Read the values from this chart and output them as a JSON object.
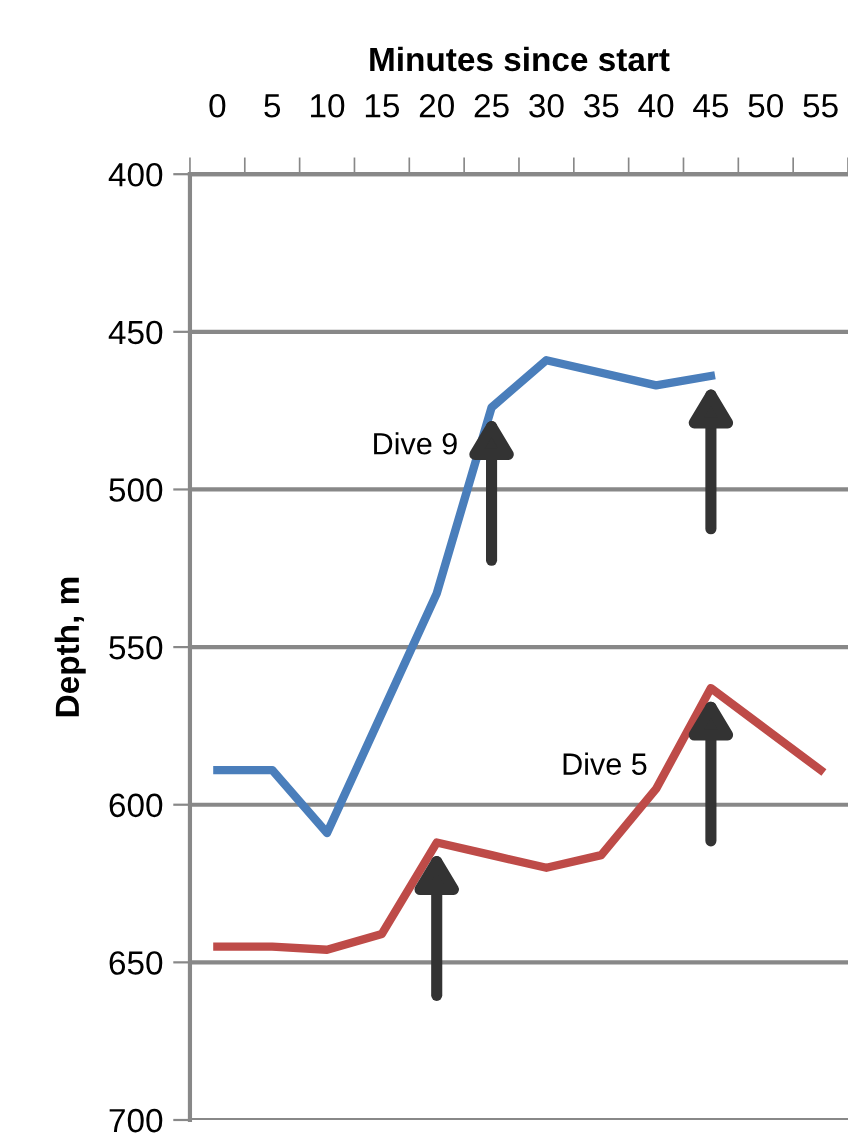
{
  "chart_data": {
    "type": "line",
    "xlabel": "Minutes since start",
    "ylabel": "Depth, m",
    "categories": [
      "0",
      "5",
      "10",
      "15",
      "20",
      "25",
      "30",
      "35",
      "40",
      "45",
      "50",
      "55"
    ],
    "series": [
      {
        "name": "Dive 9",
        "color": "#4a7ebb",
        "values": [
          589,
          589,
          609,
          571,
          533,
          474,
          459,
          463,
          467,
          464,
          null,
          null
        ]
      },
      {
        "name": "Dive 5",
        "color": "#be4b48",
        "values": [
          645,
          645,
          646,
          641,
          612,
          616,
          620,
          616,
          595,
          563,
          576,
          589
        ]
      }
    ],
    "ylim": [
      700,
      400
    ],
    "yticks": [
      400,
      450,
      500,
      550,
      600,
      650,
      700
    ],
    "grid": "y",
    "legend": false,
    "marker": "none",
    "line_style": "solid"
  }
}
